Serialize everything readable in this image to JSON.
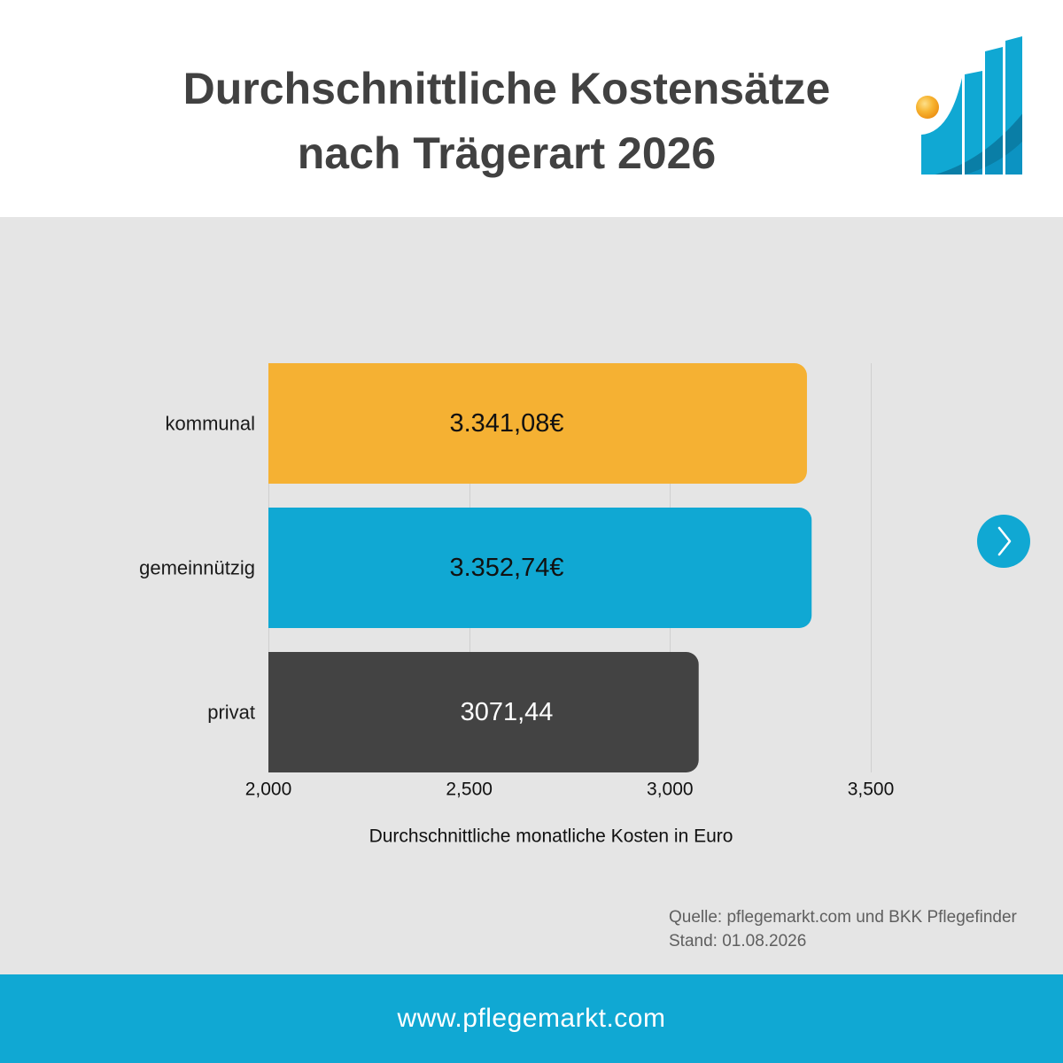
{
  "chart_data": {
    "type": "bar",
    "orientation": "horizontal",
    "title": "Durchschnittliche Kostensätze nach Trägerart 2026",
    "categories": [
      "kommunal",
      "gemeinnützig",
      "privat"
    ],
    "values": [
      3341.08,
      3352.74,
      3071.44
    ],
    "value_labels": [
      "3.341,08€",
      "3.352,74€",
      "3071,44"
    ],
    "bar_colors": [
      "#f5b133",
      "#10a8d3",
      "#434343"
    ],
    "value_label_colors": [
      "#111111",
      "#111111",
      "#ffffff"
    ],
    "xlabel": "Durchschnittliche monatliche Kosten in Euro",
    "xlim": [
      2000,
      3500
    ],
    "xticks": [
      2000,
      2500,
      3000,
      3500
    ],
    "xtick_labels": [
      "2,000",
      "2,500",
      "3,000",
      "3,500"
    ],
    "grid": true
  },
  "source": {
    "quelle": "Quelle: pflegemarkt.com und BKK Pflegefinder",
    "stand": "Stand: 01.08.2026"
  },
  "navigation": {
    "next_icon": "chevron-right-icon"
  },
  "branding": {
    "logo_icon": "pflegemarkt-logo"
  },
  "footer": {
    "url": "www.pflegemarkt.com"
  },
  "colors": {
    "title": "#414141",
    "panel_background": "#e5e5e5",
    "accent": "#10a8d3",
    "footer_text": "#ffffff",
    "source_text": "#5f5f5f",
    "gridline": "#cfcfcf",
    "tick_text": "#111111",
    "category_text": "#1a1a1a"
  }
}
